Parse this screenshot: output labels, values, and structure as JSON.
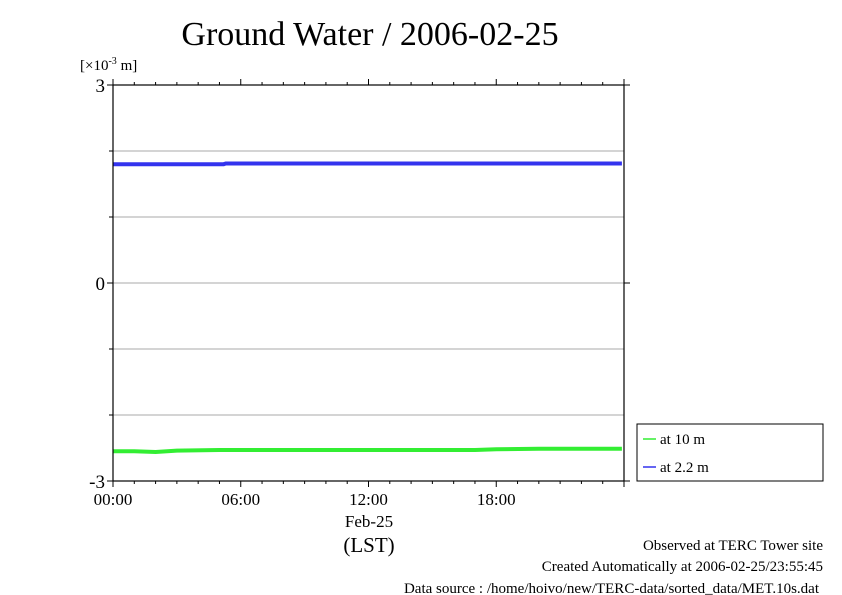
{
  "chart_data": {
    "type": "line",
    "title": "Ground Water / 2006-02-25",
    "ylabel_prefix": "[×10",
    "ylabel_exp": "-3",
    "ylabel_suffix": " m]",
    "ylim": [
      -3,
      3
    ],
    "yticks": [
      {
        "v": 3,
        "label": "3"
      },
      {
        "v": 0,
        "label": "0"
      },
      {
        "v": -3,
        "label": "-3"
      }
    ],
    "ygrid": [
      2,
      1,
      -1,
      -2
    ],
    "xlim_hours": [
      0,
      24
    ],
    "xticks": [
      {
        "h": 0,
        "label": "00:00"
      },
      {
        "h": 6,
        "label": "06:00"
      },
      {
        "h": 12,
        "label": "12:00"
      },
      {
        "h": 18,
        "label": "18:00"
      }
    ],
    "xdate": "Feb-25",
    "xunit": "(LST)",
    "series": [
      {
        "name": "at 10 m",
        "color": "#33ee33",
        "x": [
          0,
          1,
          2,
          3,
          5,
          8,
          12,
          15,
          17,
          18,
          20,
          22,
          23.9
        ],
        "y": [
          -2.55,
          -2.55,
          -2.56,
          -2.54,
          -2.53,
          -2.53,
          -2.53,
          -2.53,
          -2.53,
          -2.52,
          -2.51,
          -2.51,
          -2.51
        ]
      },
      {
        "name": "at 2.2 m",
        "color": "#3333ee",
        "x": [
          0,
          2,
          5.2,
          5.3,
          8,
          12,
          16,
          20,
          23.9
        ],
        "y": [
          1.8,
          1.8,
          1.8,
          1.81,
          1.81,
          1.81,
          1.81,
          1.81,
          1.81
        ]
      }
    ],
    "legend_position": "bottom-right-outside"
  },
  "footer": {
    "observed": "Observed at TERC Tower site",
    "created": "Created Automatically at 2006-02-25/23:55:45",
    "source": "Data source : /home/hoivo/new/TERC-data/sorted_data/MET.10s.dat"
  }
}
